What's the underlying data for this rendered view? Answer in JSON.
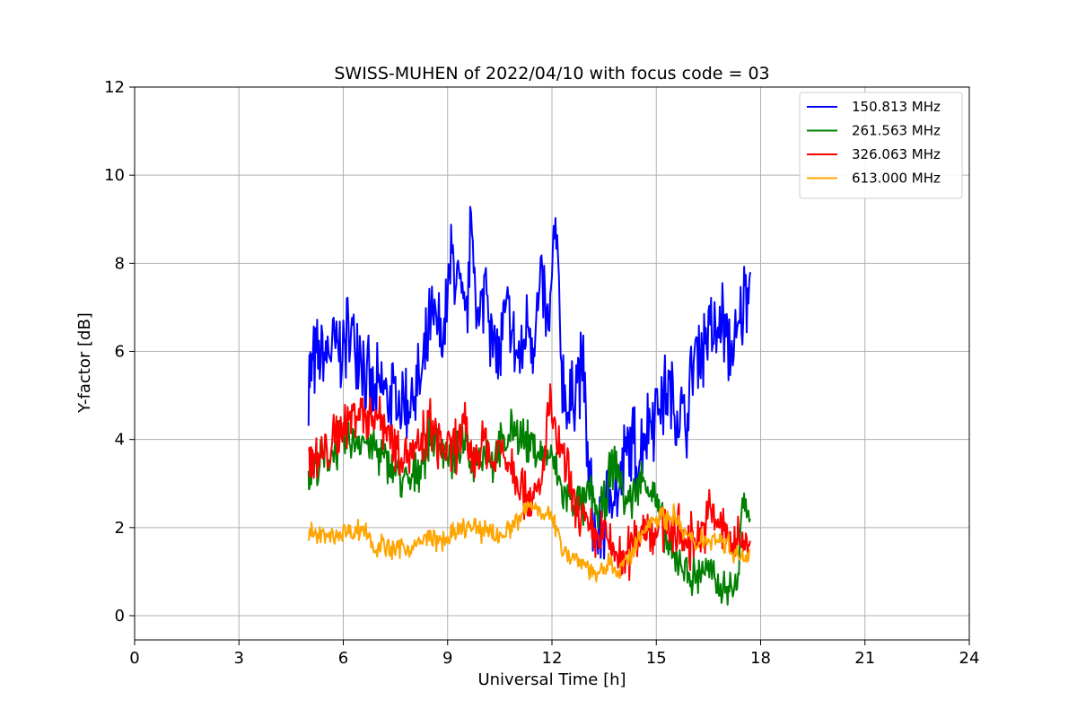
{
  "chart_data": {
    "type": "line",
    "title": "SWISS-MUHEN of 2022/04/10 with focus code = 03",
    "xlabel": "Universal Time [h]",
    "ylabel": "Y-factor [dB]",
    "xlim": [
      0,
      24
    ],
    "ylim": [
      -0.55,
      12
    ],
    "xticks": [
      0,
      3,
      6,
      9,
      12,
      15,
      18,
      21,
      24
    ],
    "yticks": [
      0,
      2,
      4,
      6,
      8,
      10,
      12
    ],
    "grid": true,
    "legend_position": "upper-right",
    "series": [
      {
        "name": "150.813 MHz",
        "color": "#0000ff",
        "x": [
          5.0,
          5.1,
          5.3,
          5.5,
          5.7,
          5.9,
          6.1,
          6.3,
          6.5,
          6.7,
          6.9,
          7.1,
          7.3,
          7.5,
          7.7,
          7.9,
          8.1,
          8.3,
          8.5,
          8.7,
          8.9,
          9.1,
          9.3,
          9.5,
          9.7,
          9.9,
          10.1,
          10.3,
          10.5,
          10.7,
          10.9,
          11.1,
          11.3,
          11.5,
          11.7,
          11.9,
          12.1,
          12.3,
          12.5,
          12.7,
          12.9,
          13.1,
          13.3,
          13.5,
          13.7,
          13.9,
          14.1,
          14.3,
          14.5,
          14.7,
          14.9,
          15.1,
          15.3,
          15.5,
          15.7,
          15.9,
          16.1,
          16.3,
          16.5,
          16.7,
          16.9,
          17.1,
          17.3,
          17.5,
          17.7
        ],
        "y": [
          5.5,
          5.6,
          5.8,
          5.9,
          6.1,
          6.0,
          6.3,
          6.4,
          6.2,
          5.2,
          4.9,
          5.1,
          5.0,
          4.9,
          4.8,
          4.9,
          5.1,
          5.4,
          6.6,
          6.5,
          6.3,
          8.1,
          7.7,
          6.4,
          8.9,
          6.3,
          7.9,
          6.1,
          5.9,
          6.9,
          6.1,
          5.7,
          6.7,
          6.3,
          7.6,
          6.3,
          8.8,
          5.4,
          4.5,
          5.5,
          5.6,
          2.6,
          1.7,
          2.1,
          3.0,
          2.6,
          3.6,
          3.9,
          3.5,
          4.3,
          4.6,
          4.9,
          5.1,
          4.8,
          4.5,
          4.4,
          6.0,
          6.1,
          6.6,
          6.3,
          6.7,
          6.1,
          6.0,
          7.1,
          7.8
        ]
      },
      {
        "name": "261.563 MHz",
        "color": "#008000",
        "x": [
          5.0,
          5.1,
          5.3,
          5.5,
          5.7,
          5.9,
          6.1,
          6.3,
          6.5,
          6.7,
          6.9,
          7.1,
          7.3,
          7.5,
          7.7,
          7.9,
          8.1,
          8.3,
          8.5,
          8.7,
          8.9,
          9.1,
          9.3,
          9.5,
          9.7,
          9.9,
          10.1,
          10.3,
          10.5,
          10.7,
          10.9,
          11.1,
          11.3,
          11.5,
          11.7,
          11.9,
          12.1,
          12.3,
          12.5,
          12.7,
          12.9,
          13.1,
          13.3,
          13.5,
          13.7,
          13.9,
          14.1,
          14.3,
          14.5,
          14.7,
          14.9,
          15.1,
          15.3,
          15.5,
          15.7,
          15.9,
          16.1,
          16.3,
          16.5,
          16.7,
          16.9,
          17.1,
          17.3,
          17.5,
          17.7
        ],
        "y": [
          3.2,
          3.3,
          3.4,
          3.6,
          3.7,
          3.9,
          3.9,
          4.0,
          4.1,
          3.9,
          3.8,
          3.6,
          3.4,
          3.3,
          3.1,
          3.0,
          3.2,
          3.6,
          4.1,
          4.0,
          3.8,
          3.6,
          3.7,
          3.9,
          3.5,
          3.6,
          3.8,
          3.5,
          3.8,
          3.9,
          4.3,
          4.1,
          3.9,
          3.8,
          3.6,
          3.7,
          3.3,
          2.8,
          2.7,
          2.6,
          2.4,
          2.9,
          2.3,
          2.5,
          3.4,
          3.3,
          2.6,
          2.7,
          3.0,
          3.1,
          2.8,
          2.2,
          1.7,
          1.2,
          1.3,
          1.0,
          0.8,
          1.1,
          1.0,
          0.7,
          0.6,
          0.7,
          0.5,
          2.7,
          2.2
        ]
      },
      {
        "name": "326.063 MHz",
        "color": "#ff0000",
        "x": [
          5.0,
          5.1,
          5.3,
          5.5,
          5.7,
          5.9,
          6.1,
          6.3,
          6.5,
          6.7,
          6.9,
          7.1,
          7.3,
          7.5,
          7.7,
          7.9,
          8.1,
          8.3,
          8.5,
          8.7,
          8.9,
          9.1,
          9.3,
          9.5,
          9.7,
          9.9,
          10.1,
          10.3,
          10.5,
          10.7,
          10.9,
          11.1,
          11.3,
          11.5,
          11.7,
          11.9,
          12.1,
          12.3,
          12.5,
          12.7,
          12.9,
          13.1,
          13.3,
          13.5,
          13.7,
          13.9,
          14.1,
          14.3,
          14.5,
          14.7,
          14.9,
          15.1,
          15.3,
          15.5,
          15.7,
          15.9,
          16.1,
          16.3,
          16.5,
          16.7,
          16.9,
          17.1,
          17.3,
          17.5,
          17.7
        ],
        "y": [
          3.5,
          3.6,
          3.5,
          3.7,
          3.9,
          4.2,
          4.4,
          4.6,
          4.7,
          4.5,
          4.6,
          4.5,
          4.2,
          3.9,
          3.8,
          3.7,
          3.6,
          4.0,
          4.3,
          4.0,
          3.8,
          3.7,
          4.0,
          4.2,
          3.6,
          3.7,
          4.1,
          3.3,
          3.9,
          3.6,
          3.4,
          3.0,
          2.8,
          2.6,
          2.9,
          4.8,
          4.1,
          3.6,
          3.0,
          2.3,
          2.2,
          1.8,
          1.7,
          1.9,
          1.5,
          1.4,
          1.2,
          1.6,
          2.0,
          2.1,
          1.9,
          2.0,
          2.1,
          2.0,
          1.8,
          1.7,
          1.7,
          1.9,
          2.3,
          2.2,
          1.9,
          1.8,
          1.6,
          1.7,
          1.7
        ]
      },
      {
        "name": "613.000 MHz",
        "color": "#ffa500",
        "x": [
          5.0,
          5.1,
          5.3,
          5.5,
          5.7,
          5.9,
          6.1,
          6.3,
          6.5,
          6.7,
          6.9,
          7.1,
          7.3,
          7.5,
          7.7,
          7.9,
          8.1,
          8.3,
          8.5,
          8.7,
          8.9,
          9.1,
          9.3,
          9.5,
          9.7,
          9.9,
          10.1,
          10.3,
          10.5,
          10.7,
          10.9,
          11.1,
          11.3,
          11.5,
          11.7,
          11.9,
          12.1,
          12.3,
          12.5,
          12.7,
          12.9,
          13.1,
          13.3,
          13.5,
          13.7,
          13.9,
          14.1,
          14.3,
          14.5,
          14.7,
          14.9,
          15.1,
          15.3,
          15.5,
          15.7,
          15.9,
          16.1,
          16.3,
          16.5,
          16.7,
          16.9,
          17.1,
          17.3,
          17.5,
          17.7
        ],
        "y": [
          1.9,
          1.9,
          1.8,
          1.8,
          1.8,
          1.9,
          1.9,
          1.9,
          2.0,
          1.9,
          1.5,
          1.6,
          1.5,
          1.5,
          1.6,
          1.5,
          1.6,
          1.7,
          1.8,
          1.7,
          1.7,
          1.8,
          1.9,
          2.0,
          2.0,
          1.9,
          2.0,
          1.9,
          1.8,
          1.9,
          2.1,
          2.2,
          2.5,
          2.5,
          2.4,
          2.3,
          2.0,
          1.6,
          1.4,
          1.3,
          1.2,
          1.1,
          0.9,
          1.0,
          1.2,
          1.0,
          1.2,
          1.4,
          1.7,
          2.0,
          2.2,
          2.3,
          2.2,
          2.3,
          2.0,
          1.8,
          1.6,
          1.8,
          1.7,
          1.8,
          1.7,
          1.6,
          1.4,
          1.3,
          1.5
        ]
      }
    ]
  }
}
